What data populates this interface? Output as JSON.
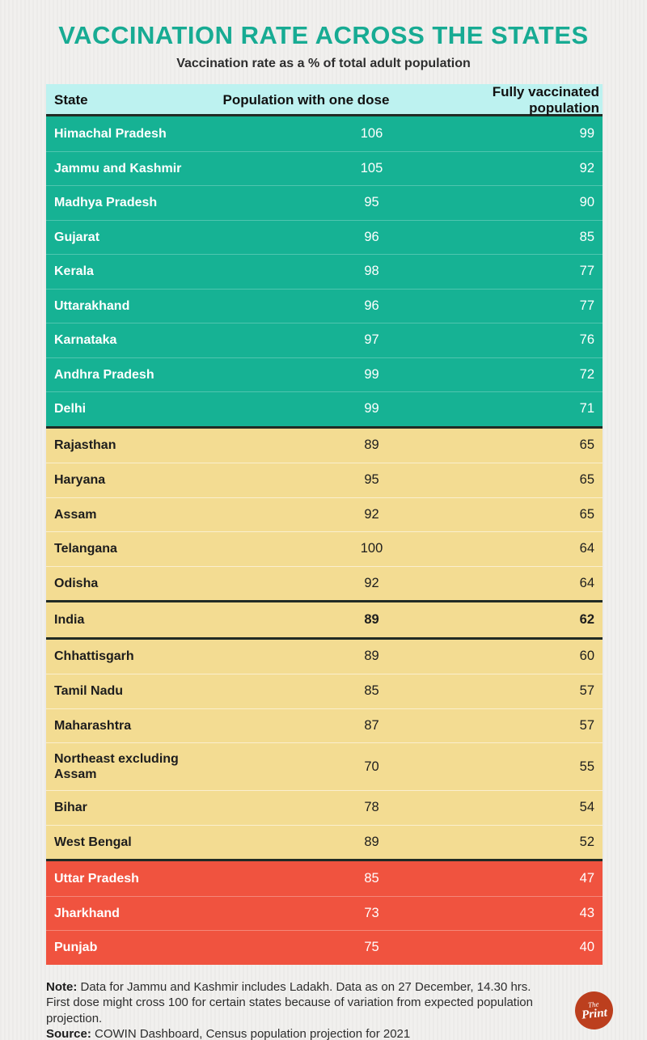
{
  "colors": {
    "page_bg": "#f1f0ee",
    "title": "#17ab93",
    "subtitle_text": "#2e2e2e",
    "header_bg": "#bdf2f0",
    "header_text": "#111111",
    "divider": "#212b25",
    "note_text": "#2d2d2d",
    "logo_bg": "#bc3f1e",
    "logo_text": "#ffffff"
  },
  "chart_data": {
    "type": "table",
    "title": "VACCINATION RATE ACROSS THE STATES",
    "subtitle": "Vaccination rate as a % of total adult population",
    "columns": [
      "State",
      "Population with one dose",
      "Fully vaccinated population"
    ],
    "sections": [
      {
        "band": "high-teal",
        "bg": "#16b294",
        "fg": "#ffffff",
        "separator": "rgba(255,255,255,0.25)",
        "emphasis": false,
        "rows": [
          [
            "Himachal Pradesh",
            106,
            99
          ],
          [
            "Jammu and Kashmir",
            105,
            92
          ],
          [
            "Madhya Pradesh",
            95,
            90
          ],
          [
            "Gujarat",
            96,
            85
          ],
          [
            "Kerala",
            98,
            77
          ],
          [
            "Uttarakhand",
            96,
            77
          ],
          [
            "Karnataka",
            97,
            76
          ],
          [
            "Andhra Pradesh",
            99,
            72
          ],
          [
            "Delhi",
            99,
            71
          ]
        ]
      },
      {
        "band": "mid-yellow-upper",
        "bg": "#f3dc92",
        "fg": "#1d1d1d",
        "separator": "rgba(255,255,255,0.55)",
        "emphasis": false,
        "rows": [
          [
            "Rajasthan",
            89,
            65
          ],
          [
            "Haryana",
            95,
            65
          ],
          [
            "Assam",
            92,
            65
          ],
          [
            "Telangana",
            100,
            64
          ],
          [
            "Odisha",
            92,
            64
          ]
        ]
      },
      {
        "band": "india-average",
        "bg": "#f3dc92",
        "fg": "#1d1d1d",
        "separator": "rgba(255,255,255,0.55)",
        "emphasis": true,
        "rows": [
          [
            "India",
            89,
            62
          ]
        ]
      },
      {
        "band": "mid-yellow-lower",
        "bg": "#f3dc92",
        "fg": "#1d1d1d",
        "separator": "rgba(255,255,255,0.55)",
        "emphasis": false,
        "rows": [
          [
            "Chhattisgarh",
            89,
            60
          ],
          [
            "Tamil Nadu",
            85,
            57
          ],
          [
            "Maharashtra",
            87,
            57
          ],
          [
            "Northeast excluding\nAssam",
            70,
            55
          ],
          [
            "Bihar",
            78,
            54
          ],
          [
            "West Bengal",
            89,
            52
          ]
        ]
      },
      {
        "band": "low-red",
        "bg": "#f0533f",
        "fg": "#ffffff",
        "separator": "rgba(255,255,255,0.3)",
        "emphasis": false,
        "rows": [
          [
            "Uttar Pradesh",
            85,
            47
          ],
          [
            "Jharkhand",
            73,
            43
          ],
          [
            "Punjab",
            75,
            40
          ]
        ]
      }
    ]
  },
  "footer": {
    "note_label": "Note:",
    "note_text": " Data for Jammu and Kashmir includes Ladakh. Data as on 27 December, 14.30 hrs. First dose might cross 100 for certain states because of variation from expected population projection.",
    "source_label": "Source:",
    "source_text": " COWIN Dashboard, Census population projection for 2021",
    "logo": {
      "line1": "The",
      "line2": "Print"
    }
  }
}
